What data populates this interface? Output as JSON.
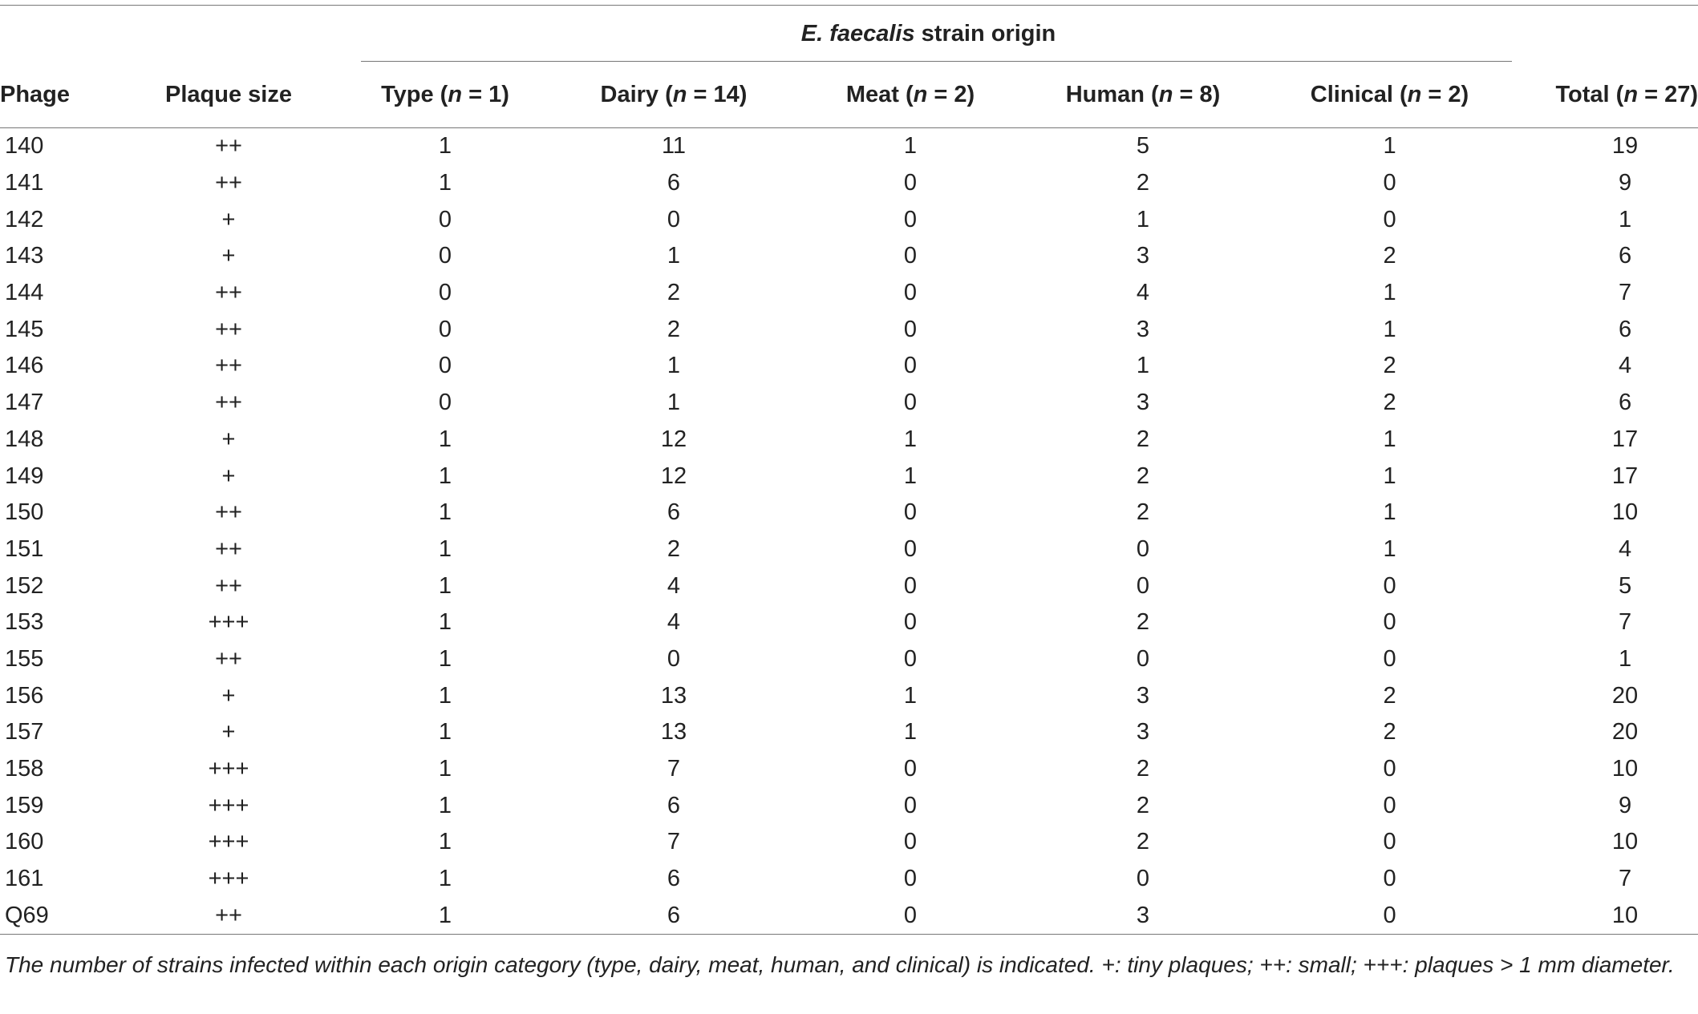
{
  "table": {
    "group_header": {
      "italic": "E. faecalis",
      "rest": " strain origin"
    },
    "columns": [
      {
        "label": "Phage",
        "n": ""
      },
      {
        "label": "Plaque size",
        "n": ""
      },
      {
        "label": "Type (",
        "n": "n",
        "tail": " = 1)"
      },
      {
        "label": "Dairy (",
        "n": "n",
        "tail": " = 14)"
      },
      {
        "label": "Meat (",
        "n": "n",
        "tail": " = 2)"
      },
      {
        "label": "Human (",
        "n": "n",
        "tail": " = 8)"
      },
      {
        "label": "Clinical (",
        "n": "n",
        "tail": " = 2)"
      },
      {
        "label": "Total (",
        "n": "n",
        "tail": " = 27)"
      }
    ],
    "rows": [
      [
        "140",
        "++",
        "1",
        "11",
        "1",
        "5",
        "1",
        "19"
      ],
      [
        "141",
        "++",
        "1",
        "6",
        "0",
        "2",
        "0",
        "9"
      ],
      [
        "142",
        "+",
        "0",
        "0",
        "0",
        "1",
        "0",
        "1"
      ],
      [
        "143",
        "+",
        "0",
        "1",
        "0",
        "3",
        "2",
        "6"
      ],
      [
        "144",
        "++",
        "0",
        "2",
        "0",
        "4",
        "1",
        "7"
      ],
      [
        "145",
        "++",
        "0",
        "2",
        "0",
        "3",
        "1",
        "6"
      ],
      [
        "146",
        "++",
        "0",
        "1",
        "0",
        "1",
        "2",
        "4"
      ],
      [
        "147",
        "++",
        "0",
        "1",
        "0",
        "3",
        "2",
        "6"
      ],
      [
        "148",
        "+",
        "1",
        "12",
        "1",
        "2",
        "1",
        "17"
      ],
      [
        "149",
        "+",
        "1",
        "12",
        "1",
        "2",
        "1",
        "17"
      ],
      [
        "150",
        "++",
        "1",
        "6",
        "0",
        "2",
        "1",
        "10"
      ],
      [
        "151",
        "++",
        "1",
        "2",
        "0",
        "0",
        "1",
        "4"
      ],
      [
        "152",
        "++",
        "1",
        "4",
        "0",
        "0",
        "0",
        "5"
      ],
      [
        "153",
        "+++",
        "1",
        "4",
        "0",
        "2",
        "0",
        "7"
      ],
      [
        "155",
        "++",
        "1",
        "0",
        "0",
        "0",
        "0",
        "1"
      ],
      [
        "156",
        "+",
        "1",
        "13",
        "1",
        "3",
        "2",
        "20"
      ],
      [
        "157",
        "+",
        "1",
        "13",
        "1",
        "3",
        "2",
        "20"
      ],
      [
        "158",
        "+++",
        "1",
        "7",
        "0",
        "2",
        "0",
        "10"
      ],
      [
        "159",
        "+++",
        "1",
        "6",
        "0",
        "2",
        "0",
        "9"
      ],
      [
        "160",
        "+++",
        "1",
        "7",
        "0",
        "2",
        "0",
        "10"
      ],
      [
        "161",
        "+++",
        "1",
        "6",
        "0",
        "0",
        "0",
        "7"
      ],
      [
        "Q69",
        "++",
        "1",
        "6",
        "0",
        "3",
        "0",
        "10"
      ]
    ]
  },
  "footnote": "The number of strains infected within each origin category (type, dairy, meat, human, and clinical) is indicated. +: tiny plaques; ++: small; +++: plaques > 1 mm diameter."
}
